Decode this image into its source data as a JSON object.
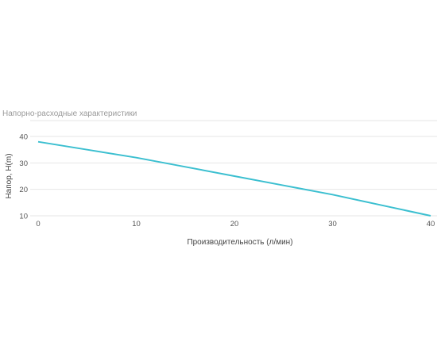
{
  "chart_data": {
    "type": "line",
    "title": "Напорно-расходные характеристики",
    "xlabel": "Производительность (л/мин)",
    "ylabel": "Напор, H(m)",
    "xlim": [
      0,
      40
    ],
    "ylim": [
      10,
      40
    ],
    "xticks": [
      0,
      10,
      20,
      30,
      40
    ],
    "yticks": [
      10,
      20,
      30,
      40
    ],
    "grid": true,
    "colors": {
      "line": "#3bbfd0",
      "grid": "#e6e6e6"
    },
    "series": [
      {
        "x": [
          0,
          5,
          10,
          15,
          20,
          25,
          30,
          35,
          40
        ],
        "values": [
          38,
          35,
          32,
          28.5,
          25,
          21.5,
          18,
          14,
          10
        ]
      }
    ]
  }
}
